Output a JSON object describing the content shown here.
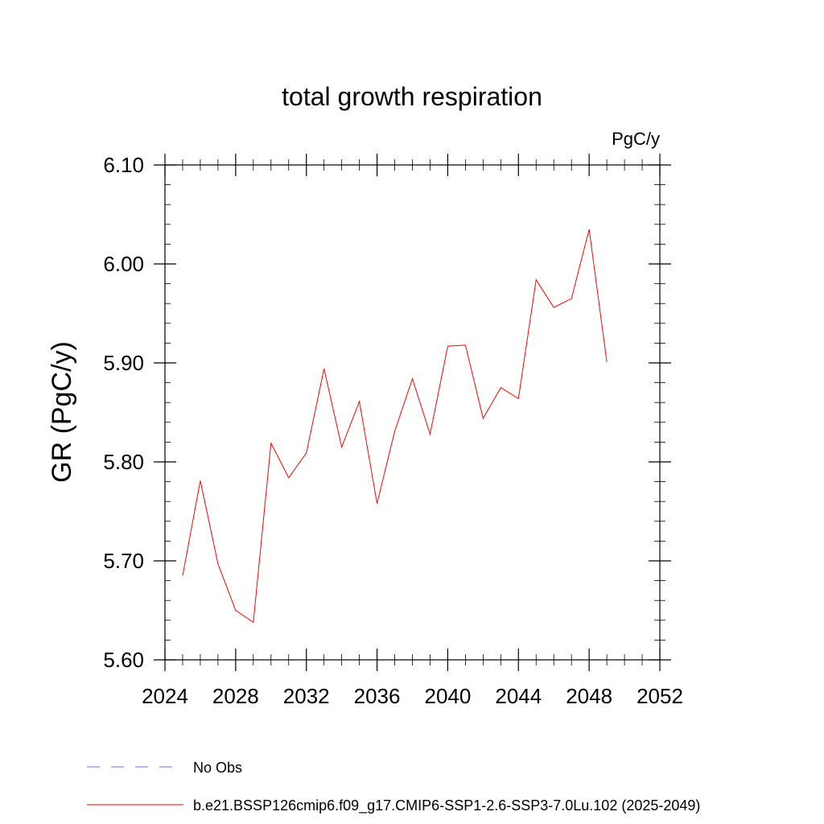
{
  "chart_data": {
    "type": "line",
    "title": "total growth respiration",
    "units": "PgC/y",
    "xlabel": "",
    "ylabel": "GR  (PgC/y)",
    "xlim": [
      2024,
      2052
    ],
    "ylim": [
      5.6,
      6.1
    ],
    "x_ticks": [
      2024,
      2028,
      2032,
      2036,
      2040,
      2044,
      2048,
      2052
    ],
    "y_ticks": [
      5.6,
      5.7,
      5.8,
      5.9,
      6.0,
      6.1
    ],
    "x_tick_labels": [
      "2024",
      "2028",
      "2032",
      "2036",
      "2040",
      "2044",
      "2048",
      "2052"
    ],
    "y_tick_labels": [
      "5.60",
      "5.70",
      "5.80",
      "5.90",
      "6.00",
      "6.10"
    ],
    "x_minor_step": 1,
    "y_minor_step": 0.02,
    "grid": false,
    "legend_position": "bottom-left",
    "series": [
      {
        "name": "b.e21.BSSP126cmip6.f09_g17.CMIP6-SSP1-2.6-SSP3-7.0Lu.102 (2025-2049)",
        "color": "#ff0000",
        "style": "solid",
        "x": [
          2025,
          2026,
          2027,
          2028,
          2029,
          2030,
          2031,
          2032,
          2033,
          2034,
          2035,
          2036,
          2037,
          2038,
          2039,
          2040,
          2041,
          2042,
          2043,
          2044,
          2045,
          2046,
          2047,
          2048,
          2049
        ],
        "values": [
          5.685,
          5.781,
          5.697,
          5.65,
          5.638,
          5.819,
          5.784,
          5.809,
          5.894,
          5.815,
          5.861,
          5.758,
          5.831,
          5.884,
          5.828,
          5.917,
          5.918,
          5.844,
          5.875,
          5.864,
          5.984,
          5.956,
          5.965,
          6.035,
          5.901
        ]
      }
    ],
    "legend": [
      {
        "label": "No Obs",
        "color": "#7b68c8",
        "style": "dashed"
      },
      {
        "label": "b.e21.BSSP126cmip6.f09_g17.CMIP6-SSP1-2.6-SSP3-7.0Lu.102 (2025-2049)",
        "color": "#ff0000",
        "style": "solid"
      }
    ]
  }
}
